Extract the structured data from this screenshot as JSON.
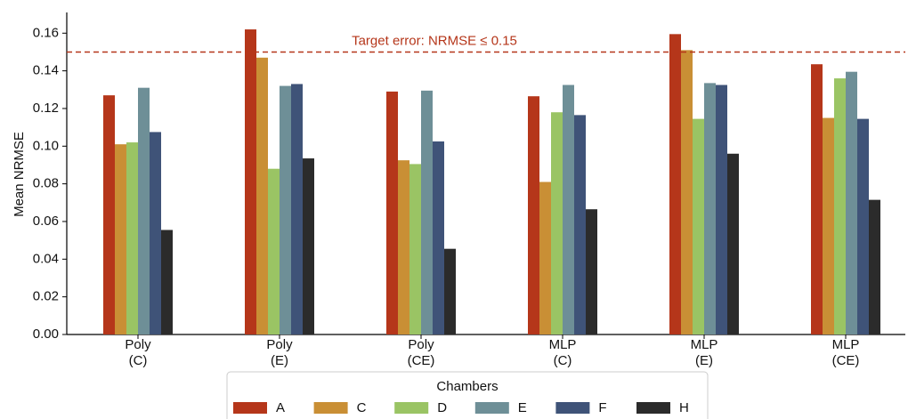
{
  "chart_data": {
    "type": "bar",
    "ylabel": "Mean NRMSE",
    "categories": [
      "Poly\n(C)",
      "Poly\n(E)",
      "Poly\n(CE)",
      "MLP\n(C)",
      "MLP\n(E)",
      "MLP\n(CE)"
    ],
    "series": [
      {
        "name": "A",
        "color": "#b5361a",
        "values": [
          0.127,
          0.162,
          0.129,
          0.1265,
          0.1595,
          0.1435
        ]
      },
      {
        "name": "C",
        "color": "#c98f35",
        "values": [
          0.101,
          0.147,
          0.0925,
          0.081,
          0.151,
          0.115
        ]
      },
      {
        "name": "D",
        "color": "#9ac464",
        "values": [
          0.102,
          0.088,
          0.0905,
          0.118,
          0.1145,
          0.136
        ]
      },
      {
        "name": "E",
        "color": "#6e8f97",
        "values": [
          0.131,
          0.132,
          0.1295,
          0.1325,
          0.1335,
          0.1395
        ]
      },
      {
        "name": "F",
        "color": "#3f5378",
        "values": [
          0.1075,
          0.133,
          0.1025,
          0.1165,
          0.1325,
          0.1145
        ]
      },
      {
        "name": "H",
        "color": "#2b2b2b",
        "values": [
          0.0555,
          0.0935,
          0.0455,
          0.0665,
          0.096,
          0.0715
        ]
      }
    ],
    "ylim": [
      0,
      0.171
    ],
    "yticks": [
      {
        "value": 0,
        "label": "0.00"
      },
      0.02,
      0.04,
      0.06,
      0.08,
      {
        "value": 0.1,
        "label": "0.10"
      },
      0.12,
      0.14,
      0.16
    ],
    "reference_line": {
      "value": 0.15,
      "label": "Target error: NRMSE  ≤  0.15",
      "color": "#b5361a"
    },
    "legend": {
      "title": "Chambers",
      "position": "bottom"
    }
  }
}
